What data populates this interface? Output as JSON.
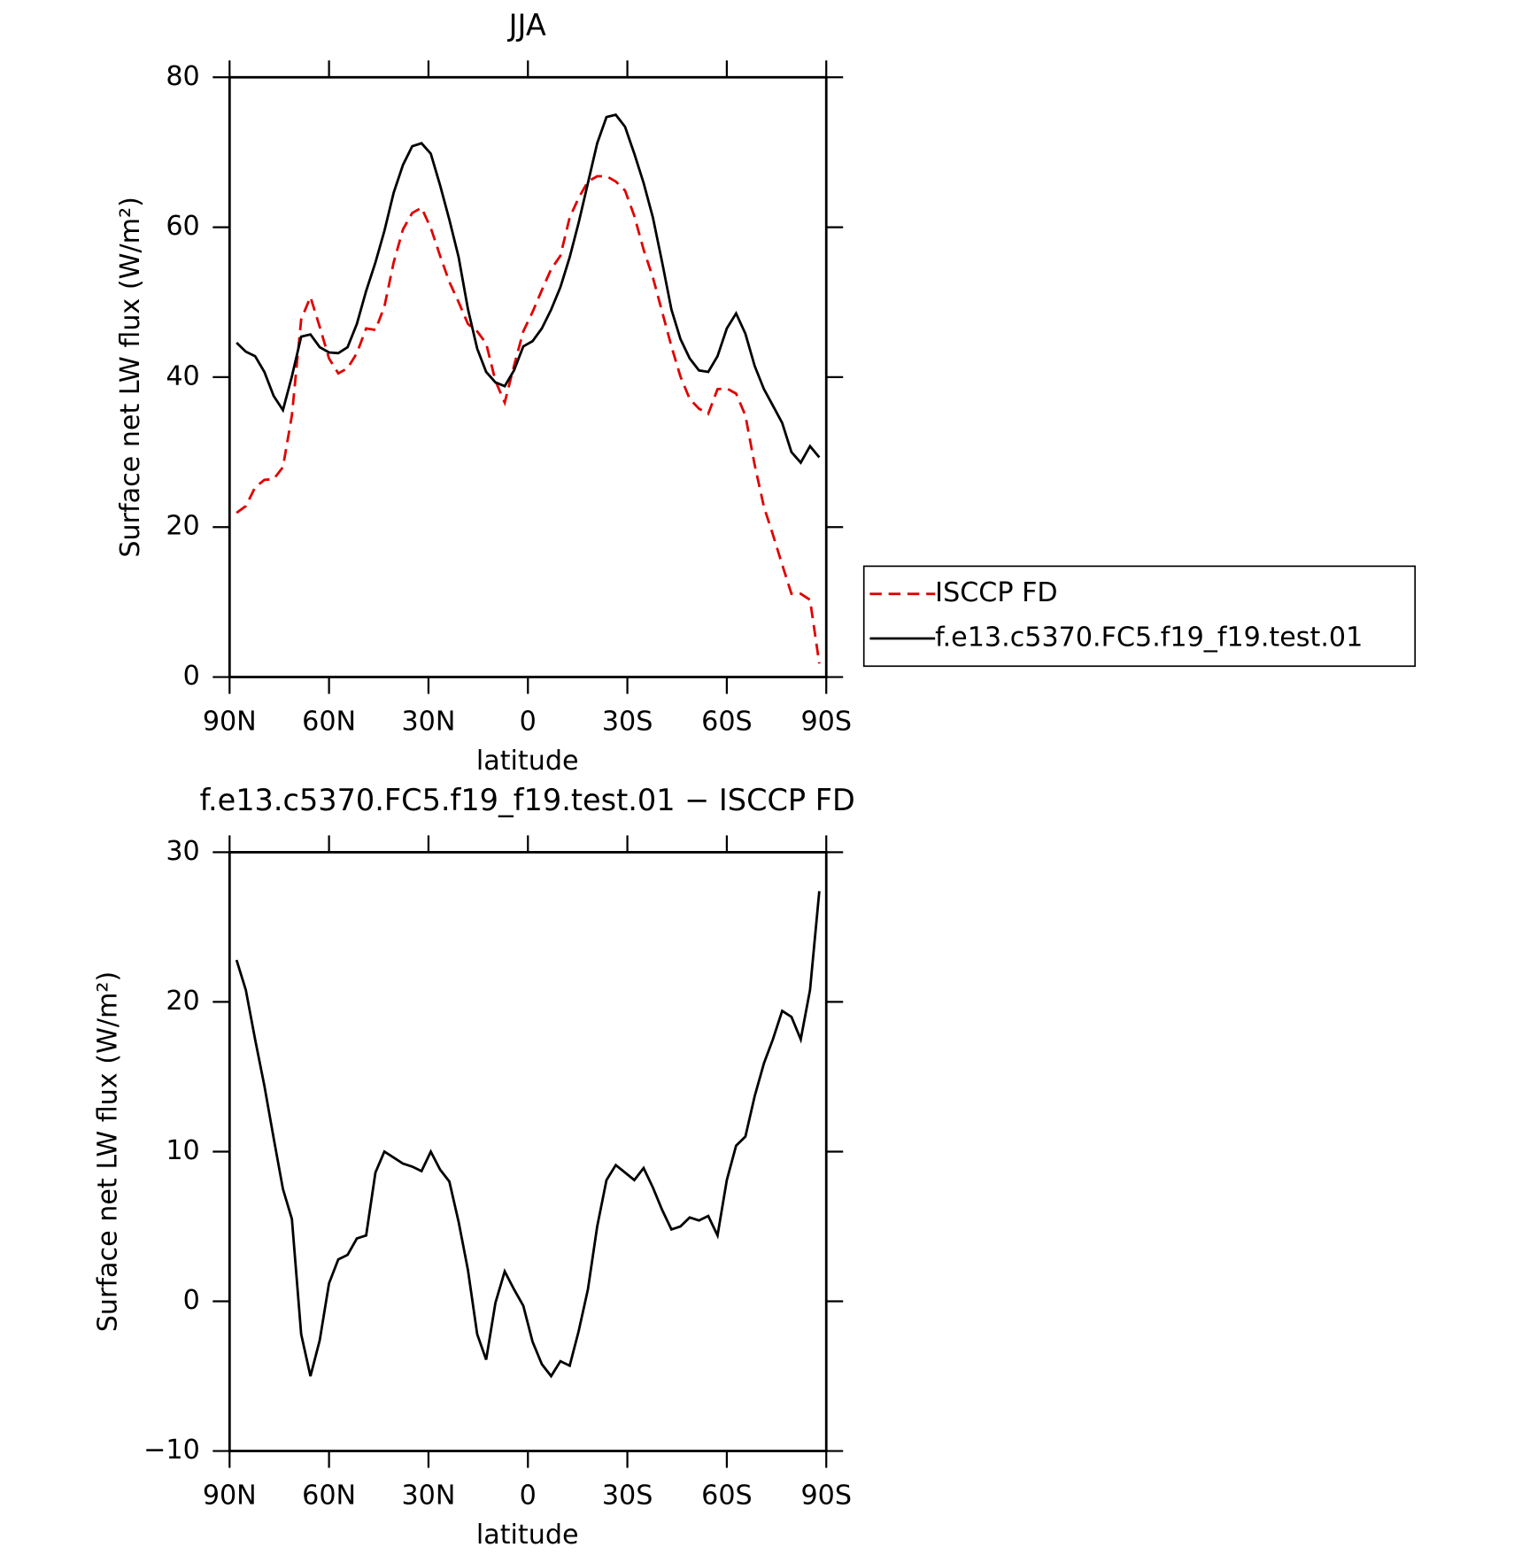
{
  "chart_data": [
    {
      "type": "line",
      "title": "JJA",
      "xlabel": "latitude",
      "ylabel": "Surface net LW flux (W/m²)",
      "x": [
        87.9,
        85.1,
        82.3,
        79.5,
        76.7,
        73.9,
        71.2,
        68.4,
        65.6,
        62.8,
        60.0,
        57.2,
        54.4,
        51.6,
        48.8,
        46.0,
        43.3,
        40.5,
        37.7,
        34.9,
        32.1,
        29.3,
        26.5,
        23.7,
        20.9,
        18.1,
        15.3,
        12.6,
        9.8,
        7.0,
        4.2,
        1.4,
        -1.4,
        -4.2,
        -7.0,
        -9.8,
        -12.6,
        -15.3,
        -18.1,
        -20.9,
        -23.7,
        -26.5,
        -29.3,
        -32.1,
        -34.9,
        -37.7,
        -40.5,
        -43.3,
        -46.0,
        -48.8,
        -51.6,
        -54.4,
        -57.2,
        -60.0,
        -62.8,
        -65.6,
        -68.4,
        -71.2,
        -73.9,
        -76.7,
        -79.5,
        -82.3,
        -85.1,
        -87.9
      ],
      "series": [
        {
          "name": "ISCCP FD",
          "color": "#e00000",
          "style": "dashed",
          "values": [
            21.9,
            22.8,
            25.3,
            26.3,
            26.4,
            28.0,
            34.9,
            47.7,
            50.7,
            46.7,
            42.5,
            40.5,
            41.2,
            43.2,
            46.5,
            46.3,
            49.4,
            55.3,
            59.7,
            61.9,
            62.6,
            59.9,
            56.2,
            52.7,
            50.0,
            47.1,
            46.1,
            44.5,
            39.5,
            36.6,
            41.5,
            46.1,
            48.7,
            51.6,
            54.4,
            56.2,
            61.3,
            63.9,
            66.1,
            66.8,
            66.8,
            66.1,
            64.9,
            61.5,
            57.0,
            53.3,
            48.7,
            44.1,
            40.1,
            37.1,
            35.8,
            35.1,
            38.4,
            38.5,
            37.8,
            34.9,
            28.3,
            22.7,
            19.0,
            15.0,
            11.1,
            11.1,
            10.3,
            1.8
          ]
        },
        {
          "name": "f.e13.c5370.FC5.f19_f19.test.01",
          "color": "#000000",
          "style": "solid",
          "values": [
            44.6,
            43.4,
            42.8,
            40.7,
            37.5,
            35.6,
            40.1,
            45.4,
            45.7,
            44.0,
            43.3,
            43.2,
            44.0,
            47.1,
            51.5,
            55.3,
            59.5,
            64.6,
            68.3,
            70.8,
            71.2,
            69.8,
            65.6,
            61.0,
            56.0,
            49.1,
            43.8,
            40.7,
            39.3,
            38.8,
            40.9,
            44.1,
            44.8,
            46.5,
            49.0,
            52.0,
            56.0,
            60.6,
            65.9,
            71.2,
            74.7,
            75.0,
            73.4,
            69.8,
            65.9,
            61.3,
            55.3,
            49.0,
            45.1,
            42.5,
            40.9,
            40.7,
            42.8,
            46.5,
            48.5,
            45.8,
            41.5,
            38.4,
            36.2,
            33.9,
            30.0,
            28.6,
            30.8,
            29.3
          ]
        }
      ],
      "xlim": [
        90,
        -90
      ],
      "xticks": [
        {
          "value": 90,
          "label": "90N"
        },
        {
          "value": 60,
          "label": "60N"
        },
        {
          "value": 30,
          "label": "30N"
        },
        0,
        {
          "value": -30,
          "label": "30S"
        },
        {
          "value": -60,
          "label": "60S"
        },
        {
          "value": -90,
          "label": "90S"
        }
      ],
      "ylim": [
        0,
        80
      ],
      "yticks": [
        0,
        20,
        40,
        60,
        80
      ],
      "legend": "right"
    },
    {
      "type": "line",
      "title": "f.e13.c5370.FC5.f19_f19.test.01 − ISCCP FD",
      "xlabel": "latitude",
      "ylabel": "Surface net LW flux (W/m²)",
      "x": [
        87.9,
        85.1,
        82.3,
        79.5,
        76.7,
        73.9,
        71.2,
        68.4,
        65.6,
        62.8,
        60.0,
        57.2,
        54.4,
        51.6,
        48.8,
        46.0,
        43.3,
        40.5,
        37.7,
        34.9,
        32.1,
        29.3,
        26.5,
        23.7,
        20.9,
        18.1,
        15.3,
        12.6,
        9.8,
        7.0,
        4.2,
        1.4,
        -1.4,
        -4.2,
        -7.0,
        -9.8,
        -12.6,
        -15.3,
        -18.1,
        -20.9,
        -23.7,
        -26.5,
        -29.3,
        -32.1,
        -34.9,
        -37.7,
        -40.5,
        -43.3,
        -46.0,
        -48.8,
        -51.6,
        -54.4,
        -57.2,
        -60.0,
        -62.8,
        -65.6,
        -68.4,
        -71.2,
        -73.9,
        -76.7,
        -79.5,
        -82.3,
        -85.1,
        -87.9
      ],
      "color": "#000000",
      "values": [
        22.8,
        20.8,
        17.5,
        14.4,
        10.9,
        7.5,
        5.5,
        -2.2,
        -5.0,
        -2.6,
        1.2,
        2.8,
        3.1,
        4.2,
        4.4,
        8.6,
        10.0,
        9.6,
        9.2,
        9.0,
        8.7,
        10.0,
        8.8,
        8.0,
        5.3,
        2.1,
        -2.2,
        -3.9,
        -0.1,
        2.0,
        0.8,
        -0.3,
        -2.7,
        -4.2,
        -5.0,
        -4.0,
        -4.3,
        -2.0,
        0.8,
        5.0,
        8.1,
        9.1,
        8.6,
        8.1,
        8.9,
        7.6,
        6.1,
        4.8,
        5.0,
        5.6,
        5.4,
        5.7,
        4.4,
        8.1,
        10.4,
        11.0,
        13.7,
        15.9,
        17.5,
        19.4,
        19.0,
        17.5,
        20.8,
        27.4
      ],
      "xlim": [
        90,
        -90
      ],
      "xticks": [
        {
          "value": 90,
          "label": "90N"
        },
        {
          "value": 60,
          "label": "60N"
        },
        {
          "value": 30,
          "label": "30N"
        },
        0,
        {
          "value": -30,
          "label": "30S"
        },
        {
          "value": -60,
          "label": "60S"
        },
        {
          "value": -90,
          "label": "90S"
        }
      ],
      "ylim": [
        -10,
        30
      ],
      "yticks": [
        {
          "value": -10,
          "label": "−10"
        },
        0,
        10,
        20,
        30
      ]
    }
  ]
}
